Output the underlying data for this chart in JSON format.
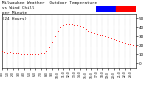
{
  "bg_color": "#ffffff",
  "dot_color": "#ff0000",
  "dot_size": 1.5,
  "legend_blue": "#0000ff",
  "legend_red": "#ff0000",
  "x_ticks": [
    0,
    60,
    120,
    180,
    240,
    300,
    360,
    420,
    480,
    540,
    600,
    660,
    720,
    780,
    840,
    900,
    960,
    1020,
    1080,
    1140,
    1200,
    1260,
    1320,
    1380
  ],
  "x_tick_labels": [
    "0:0",
    "1:0",
    "2:0",
    "3:0",
    "4:0",
    "5:0",
    "6:0",
    "7:0",
    "8:0",
    "9:0",
    "10:0",
    "11:0",
    "12:0",
    "13:0",
    "14:0",
    "15:0",
    "16:0",
    "17:0",
    "18:0",
    "19:0",
    "20:0",
    "21:0",
    "22:0",
    "23:0"
  ],
  "ylim": [
    -5,
    55
  ],
  "xlim": [
    0,
    1439
  ],
  "y_ticks": [
    0,
    10,
    20,
    30,
    40,
    50
  ],
  "data_x": [
    0,
    30,
    60,
    90,
    120,
    150,
    180,
    210,
    240,
    270,
    300,
    330,
    360,
    390,
    420,
    450,
    480,
    510,
    540,
    570,
    600,
    630,
    660,
    690,
    720,
    750,
    780,
    810,
    840,
    870,
    900,
    930,
    960,
    990,
    1020,
    1050,
    1080,
    1110,
    1140,
    1170,
    1200,
    1230,
    1260,
    1290,
    1320,
    1350,
    1380,
    1410,
    1439
  ],
  "data_y": [
    14,
    13,
    12,
    13,
    12,
    11,
    11,
    10,
    10,
    10,
    10,
    10,
    10,
    10,
    11,
    12,
    14,
    18,
    24,
    30,
    36,
    40,
    43,
    44,
    44,
    44,
    43,
    43,
    42,
    40,
    38,
    36,
    35,
    34,
    33,
    32,
    31,
    30,
    29,
    28,
    27,
    26,
    25,
    24,
    23,
    22,
    21,
    20,
    19
  ],
  "title_lines": [
    "Milwaukee Weather  Outdoor Temperature",
    "vs Wind Chill",
    "per Minute",
    "(24 Hours)"
  ],
  "title_fontsize": 3.0,
  "tick_fontsize_x": 2.2,
  "tick_fontsize_y": 3.0
}
